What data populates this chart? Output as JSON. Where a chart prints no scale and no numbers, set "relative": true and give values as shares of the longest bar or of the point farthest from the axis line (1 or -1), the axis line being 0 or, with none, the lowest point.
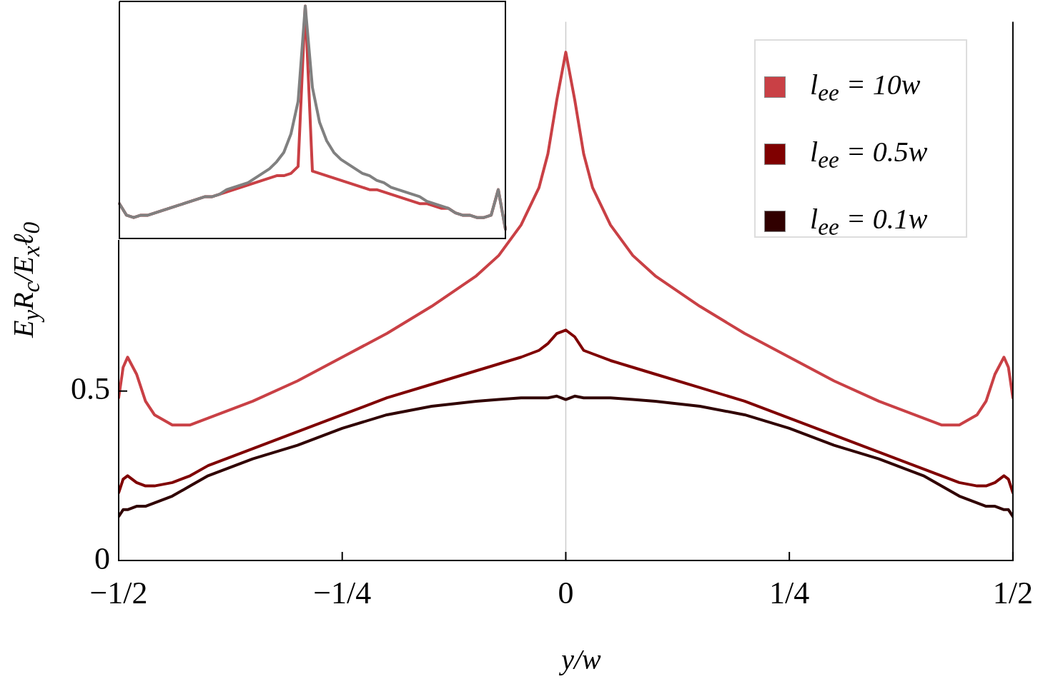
{
  "chart_data": [
    {
      "type": "line",
      "xlabel": "y/w",
      "ylabel": "E$_{y}$R$_{c}$/E$_{x}$ℓ$_{0}$",
      "xlim": [
        -0.5,
        0.5
      ],
      "ylim": [
        0,
        1.59
      ],
      "xticks": [
        {
          "value": -0.5,
          "label": "−1/2"
        },
        {
          "value": -0.25,
          "label": "−1/4"
        },
        0,
        {
          "value": 0.25,
          "label": "1/4"
        },
        {
          "value": 0.5,
          "label": "1/2"
        }
      ],
      "yticks": [
        0,
        0.5
      ],
      "legend": "top right",
      "line_style": "solid",
      "ref_lines": [
        {
          "axis": "x",
          "value": 0,
          "color": "#cccccc"
        }
      ],
      "x": [
        -0.5,
        -0.495,
        -0.49,
        -0.48,
        -0.47,
        -0.46,
        -0.44,
        -0.42,
        -0.4,
        -0.35,
        -0.3,
        -0.25,
        -0.2,
        -0.15,
        -0.1,
        -0.075,
        -0.05,
        -0.03,
        -0.02,
        -0.01,
        0,
        0.01,
        0.02,
        0.03,
        0.05,
        0.075,
        0.1,
        0.15,
        0.2,
        0.25,
        0.3,
        0.35,
        0.4,
        0.42,
        0.44,
        0.46,
        0.47,
        0.48,
        0.49,
        0.495,
        0.5
      ],
      "series": [
        {
          "name": "l$_{ee}$ = 10w",
          "color": "#c94045",
          "values": [
            0.48,
            0.57,
            0.6,
            0.55,
            0.47,
            0.43,
            0.4,
            0.4,
            0.42,
            0.47,
            0.53,
            0.6,
            0.67,
            0.75,
            0.84,
            0.9,
            0.99,
            1.1,
            1.2,
            1.36,
            1.5,
            1.36,
            1.2,
            1.1,
            0.99,
            0.9,
            0.84,
            0.75,
            0.67,
            0.6,
            0.53,
            0.47,
            0.42,
            0.4,
            0.4,
            0.43,
            0.47,
            0.55,
            0.6,
            0.57,
            0.48
          ]
        },
        {
          "name": "l$_{ee}$ = 0.5w",
          "color": "#7f0000",
          "values": [
            0.2,
            0.24,
            0.25,
            0.23,
            0.22,
            0.22,
            0.23,
            0.25,
            0.28,
            0.33,
            0.38,
            0.43,
            0.48,
            0.52,
            0.56,
            0.58,
            0.6,
            0.62,
            0.64,
            0.67,
            0.68,
            0.66,
            0.62,
            0.61,
            0.59,
            0.57,
            0.55,
            0.51,
            0.47,
            0.42,
            0.37,
            0.32,
            0.27,
            0.25,
            0.23,
            0.22,
            0.22,
            0.23,
            0.25,
            0.24,
            0.2
          ]
        },
        {
          "name": "l$_{ee}$ = 0.1w",
          "color": "#300000",
          "values": [
            0.13,
            0.15,
            0.15,
            0.16,
            0.16,
            0.17,
            0.19,
            0.22,
            0.25,
            0.3,
            0.34,
            0.39,
            0.43,
            0.455,
            0.47,
            0.475,
            0.48,
            0.48,
            0.48,
            0.485,
            0.475,
            0.485,
            0.48,
            0.48,
            0.48,
            0.475,
            0.47,
            0.455,
            0.43,
            0.39,
            0.34,
            0.3,
            0.25,
            0.22,
            0.19,
            0.17,
            0.16,
            0.16,
            0.15,
            0.15,
            0.13
          ]
        }
      ]
    },
    {
      "type": "line",
      "relative": true,
      "categories": [
        null,
        null,
        null,
        null,
        null,
        null,
        null,
        null,
        null,
        null,
        null,
        null,
        null,
        null,
        null,
        null,
        null,
        null,
        null,
        null,
        null,
        null,
        null,
        null,
        null,
        null,
        null,
        null,
        null,
        null,
        null,
        null,
        null,
        null,
        null,
        null,
        null,
        null,
        null,
        null,
        null,
        null,
        null,
        null,
        null,
        null,
        null,
        null,
        null,
        null,
        null,
        null,
        null,
        null,
        null
      ],
      "series": [
        {
          "color": "#808080",
          "values": [
            0.15,
            0.1,
            0.09,
            0.1,
            0.1,
            0.11,
            0.12,
            0.13,
            0.14,
            0.15,
            0.16,
            0.17,
            0.18,
            0.18,
            0.19,
            0.21,
            0.22,
            0.23,
            0.24,
            0.26,
            0.28,
            0.3,
            0.33,
            0.37,
            0.45,
            0.59,
            1.0,
            0.65,
            0.5,
            0.42,
            0.37,
            0.34,
            0.32,
            0.3,
            0.28,
            0.27,
            0.25,
            0.24,
            0.22,
            0.21,
            0.2,
            0.19,
            0.18,
            0.16,
            0.15,
            0.14,
            0.13,
            0.11,
            0.1,
            0.1,
            0.09,
            0.09,
            0.1,
            0.21,
            0.04
          ]
        },
        {
          "color": "#c94045",
          "values": [
            0.15,
            0.1,
            0.09,
            0.1,
            0.1,
            0.11,
            0.12,
            0.13,
            0.14,
            0.15,
            0.16,
            0.17,
            0.18,
            0.18,
            0.19,
            0.2,
            0.21,
            0.22,
            0.23,
            0.24,
            0.25,
            0.26,
            0.27,
            0.27,
            0.28,
            0.31,
            1.0,
            0.29,
            0.28,
            0.27,
            0.26,
            0.25,
            0.24,
            0.23,
            0.22,
            0.21,
            0.21,
            0.2,
            0.19,
            0.18,
            0.17,
            0.16,
            0.15,
            0.15,
            0.14,
            0.13,
            0.13,
            0.11,
            0.1,
            0.1,
            0.09,
            0.09,
            0.1,
            0.21,
            0.04
          ]
        }
      ]
    }
  ]
}
